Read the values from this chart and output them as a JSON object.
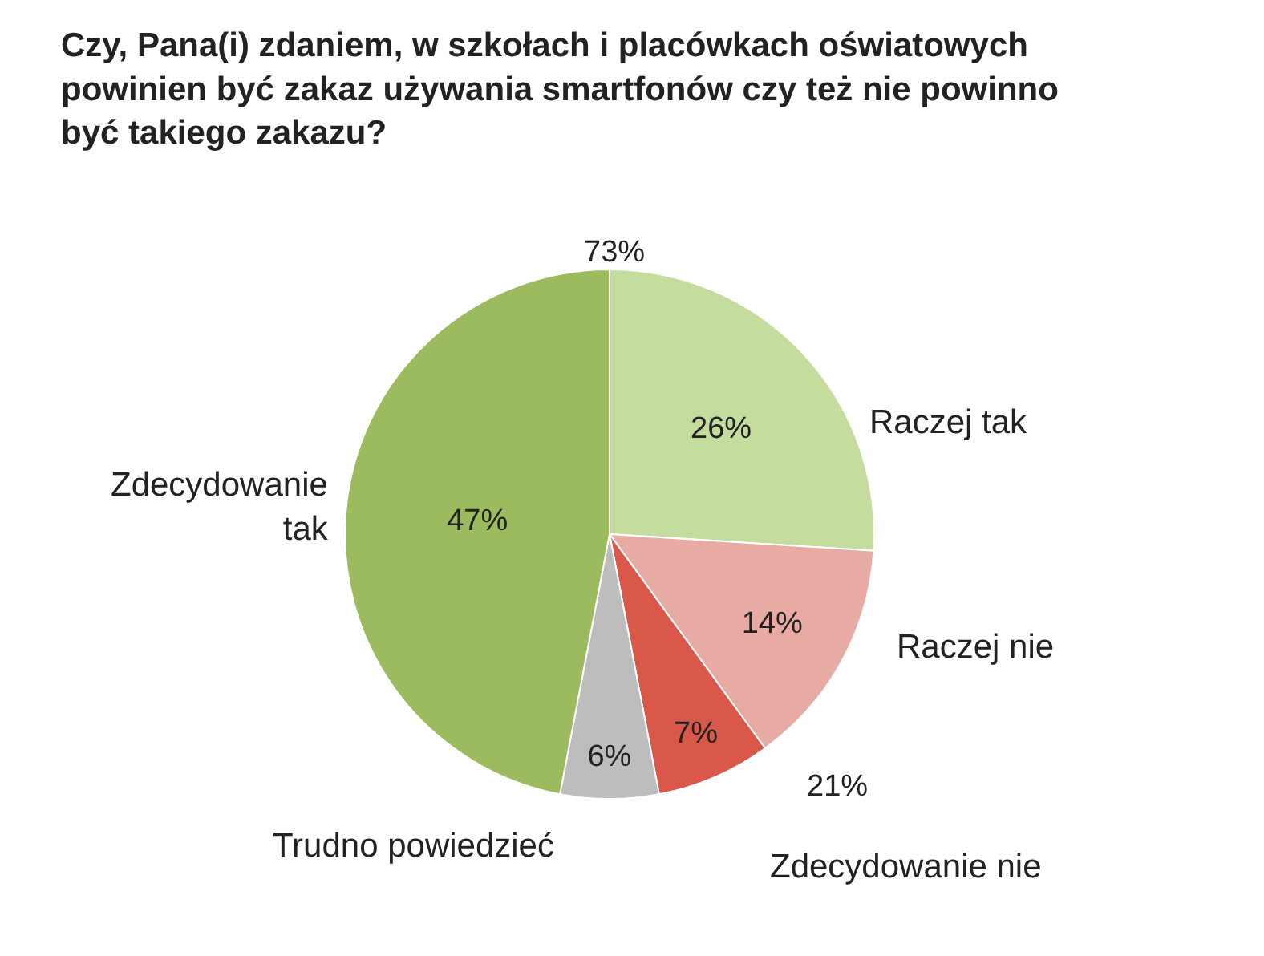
{
  "chart_data": {
    "type": "pie",
    "title": "Czy, Pana(i) zdaniem, w szkołach i placówkach oświatowych\npowinien być zakaz używania smartfonów czy też nie powinno\nbyć takiego zakazu?",
    "categories": [
      "Raczej tak",
      "Raczej nie",
      "Zdecydowanie nie",
      "Trudno powiedzieć",
      "Zdecydowanie\ntak"
    ],
    "values": [
      26,
      14,
      7,
      6,
      47
    ],
    "colors": [
      "#c5dc9f",
      "#e8aba3",
      "#d9584a",
      "#bdbdbd",
      "#9cbb5e"
    ],
    "value_labels": [
      "26%",
      "14%",
      "7%",
      "6%",
      "47%"
    ],
    "annotations": [
      "73%",
      "21%"
    ]
  }
}
